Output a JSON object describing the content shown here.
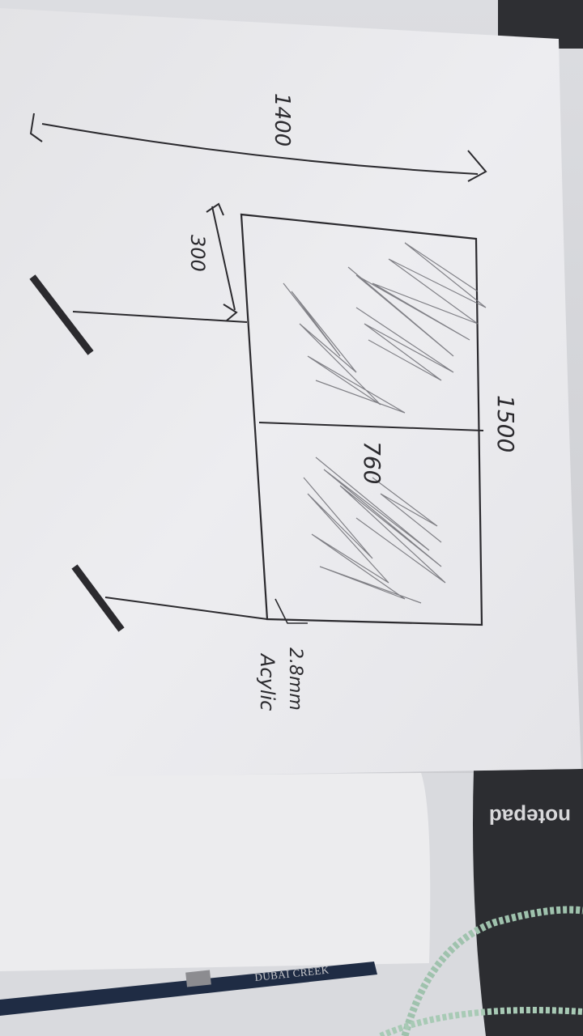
{
  "sketch": {
    "labels": {
      "overall_width": "1400",
      "side_gap": "300",
      "height": "1500",
      "divider": "760",
      "thickness": "2.8mm",
      "material": "Acylic"
    }
  },
  "background": {
    "pencil_brand": "DUBAI CREEK",
    "notepad_brand": "notepad"
  },
  "colors": {
    "paper": "#e9e9ec",
    "ink": "#2b2a2e",
    "desk": "#d5d6da",
    "notepad": "#2c2d31",
    "cable": "#9fc2ad"
  }
}
